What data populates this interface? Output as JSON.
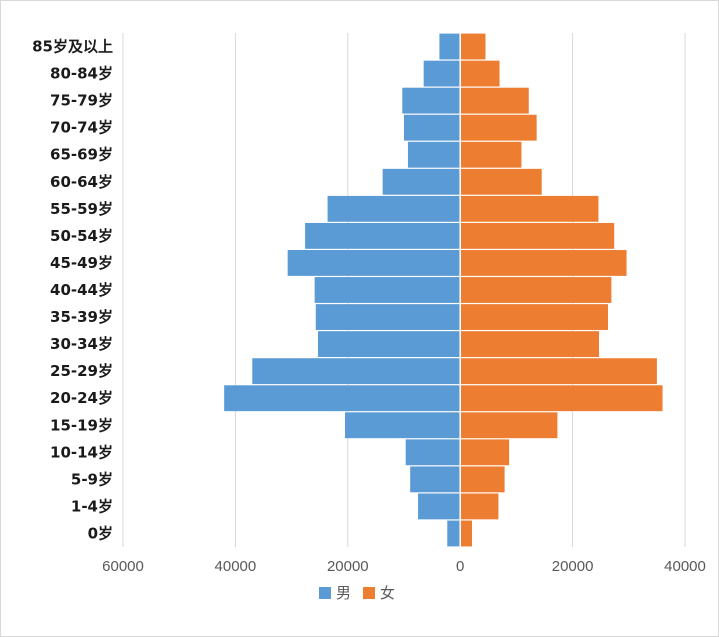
{
  "chart_data": {
    "type": "bar",
    "orientation": "horizontal-population-pyramid",
    "categories": [
      "0岁",
      "1-4岁",
      "5-9岁",
      "10-14岁",
      "15-19岁",
      "20-24岁",
      "25-29岁",
      "30-34岁",
      "35-39岁",
      "40-44岁",
      "45-49岁",
      "50-54岁",
      "55-59岁",
      "60-64岁",
      "65-69岁",
      "70-74岁",
      "75-79岁",
      "80-84岁",
      "85岁及以上"
    ],
    "series": [
      {
        "name": "男",
        "color": "#5b9bd5",
        "side": "left",
        "values": [
          2300,
          7500,
          8900,
          9700,
          20500,
          42000,
          37000,
          25300,
          25700,
          25900,
          30700,
          27600,
          23600,
          13800,
          9300,
          10000,
          10300,
          6500,
          3700
        ]
      },
      {
        "name": "女",
        "color": "#ed7d31",
        "side": "right",
        "values": [
          2100,
          6800,
          7900,
          8700,
          17300,
          36000,
          35000,
          24700,
          26300,
          26900,
          29600,
          27400,
          24600,
          14500,
          10900,
          13600,
          12200,
          7000,
          4500
        ]
      }
    ],
    "x_tick_labels": [
      "60000",
      "40000",
      "20000",
      "0",
      "20000",
      "40000"
    ],
    "xlim": [
      -60000,
      40000
    ],
    "grid": true,
    "legend": "bottom-center",
    "title": "",
    "xlabel": "",
    "ylabel": ""
  }
}
